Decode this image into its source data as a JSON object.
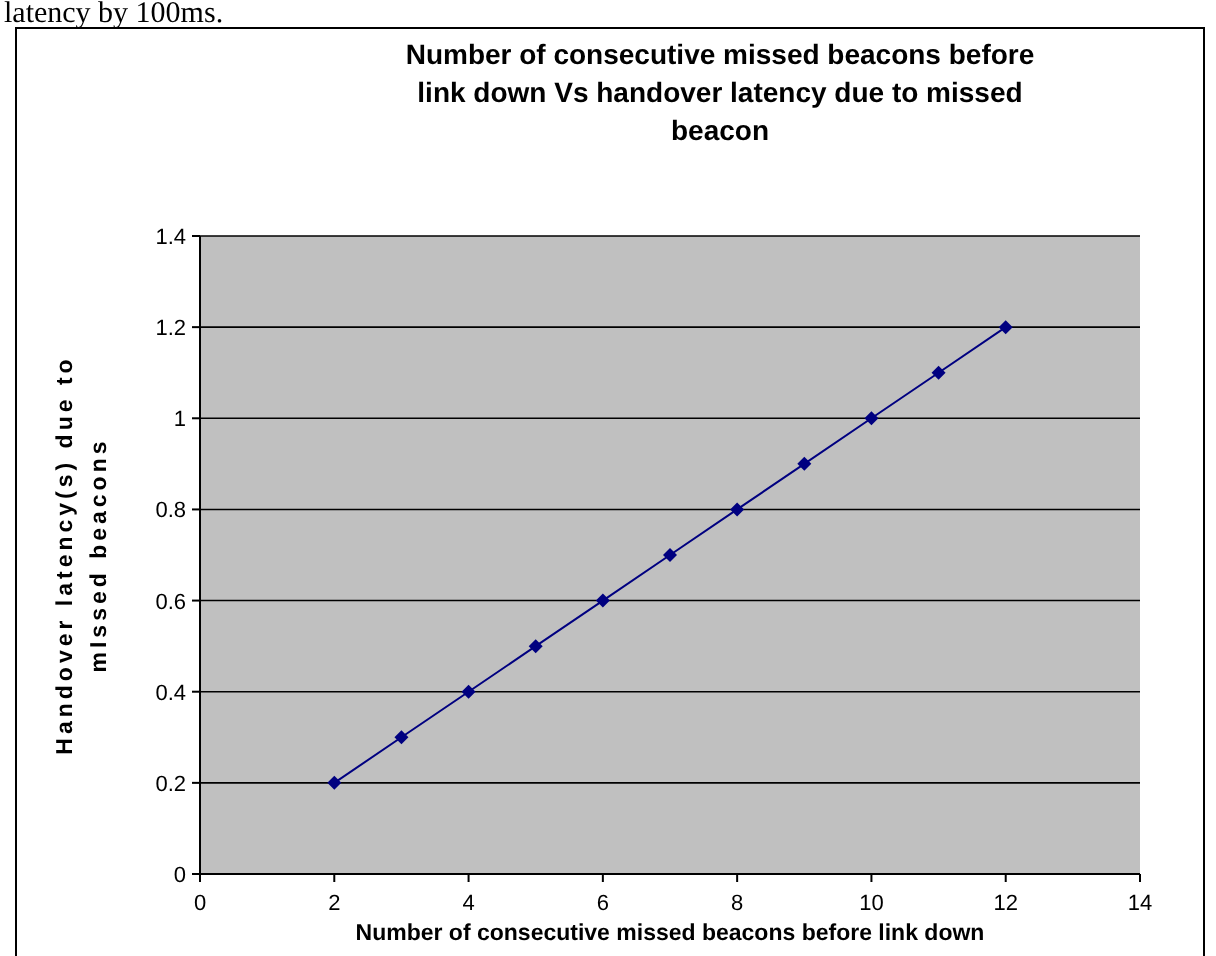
{
  "chart_data": {
    "type": "line",
    "title": "Number of consecutive missed beacons before link down Vs handover latency due to missed beacon",
    "xlabel": "Number of consecutive missed beacons before link down",
    "ylabel": "Handover latency(s) due to mIssed beacons",
    "annotations": [
      "latency by 100ms."
    ],
    "x": [
      2,
      3,
      4,
      5,
      6,
      7,
      8,
      9,
      10,
      11,
      12
    ],
    "series": [
      {
        "color": "#000080",
        "values": [
          0.2,
          0.3,
          0.4,
          0.5,
          0.6,
          0.7,
          0.8,
          0.9,
          1.0,
          1.1,
          1.2
        ]
      }
    ],
    "xlim": [
      0,
      14
    ],
    "xticks": [
      0,
      2,
      4,
      6,
      8,
      10,
      12,
      14
    ],
    "ylim": [
      0,
      1.4
    ],
    "yticks": [
      0,
      0.2,
      0.4,
      0.6,
      0.8,
      1,
      1.2,
      1.4
    ],
    "grid": "y",
    "marker": "diamond",
    "line_style": "solid"
  }
}
